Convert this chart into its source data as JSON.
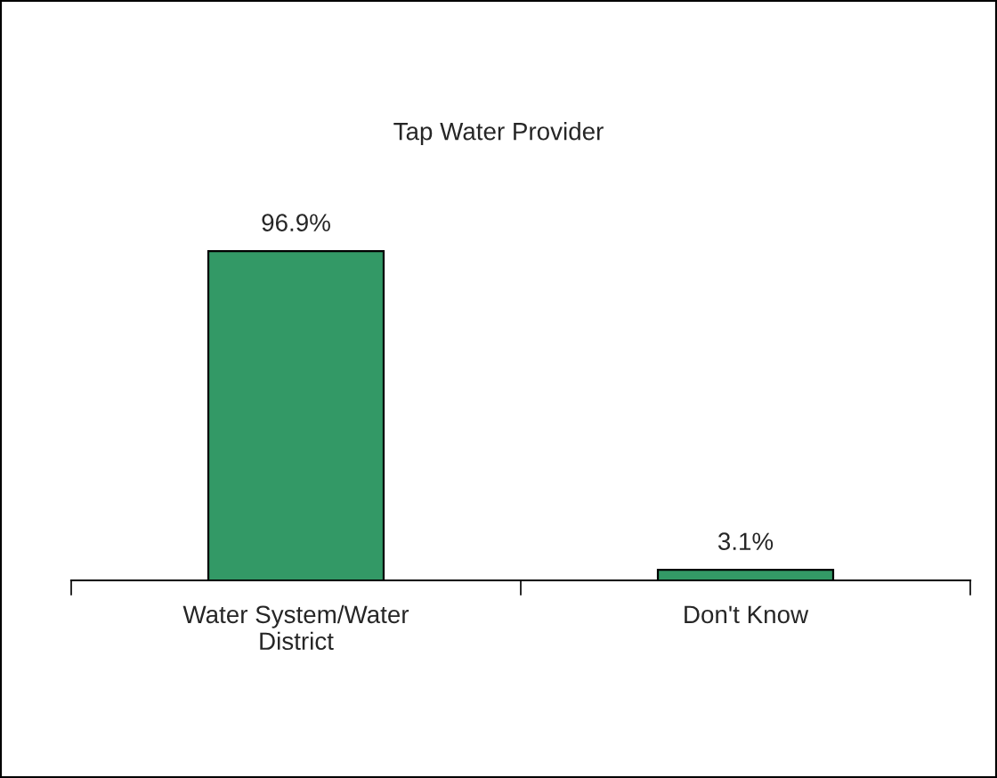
{
  "chart_data": {
    "type": "bar",
    "title": "Tap Water Provider",
    "categories": [
      "Water System/Water\nDistrict",
      "Don't Know"
    ],
    "values": [
      96.9,
      3.1
    ],
    "value_labels": [
      "96.9%",
      "3.1%"
    ],
    "color": "#339966",
    "grid": false,
    "legend": false
  }
}
